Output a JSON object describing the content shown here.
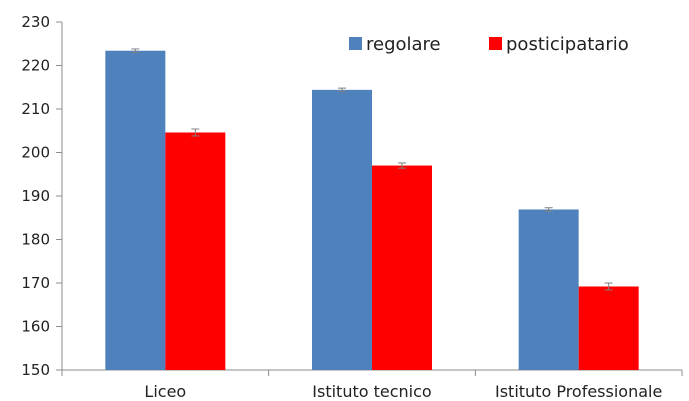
{
  "chart_data": {
    "type": "bar",
    "title": "",
    "xlabel": "",
    "ylabel": "",
    "categories": [
      "Liceo",
      "Istituto tecnico",
      "Istituto Professionale"
    ],
    "series": [
      {
        "name": "regolare",
        "color": "#4f81bd",
        "values": [
          223.4,
          214.4,
          186.9
        ],
        "error": [
          0.4,
          0.4,
          0.4
        ]
      },
      {
        "name": "posticipatario",
        "color": "#ff0000",
        "values": [
          204.6,
          197.0,
          169.2
        ],
        "error": [
          0.8,
          0.6,
          0.8
        ]
      }
    ],
    "ylim": [
      150,
      230
    ],
    "yticks": [
      150,
      160,
      170,
      180,
      190,
      200,
      210,
      220,
      230
    ],
    "grid": false,
    "legend": "top-right",
    "error_bars": true
  }
}
